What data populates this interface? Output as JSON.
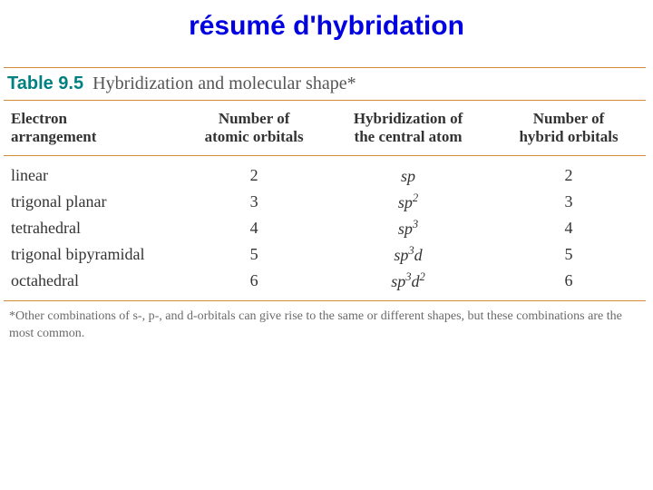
{
  "title": {
    "text": "résumé d'hybridation",
    "color": "#0000e0",
    "fontsize": 30
  },
  "table": {
    "rule_color": "#d38a3a",
    "label": {
      "prefix": "Table 9.5",
      "prefix_color": "#008080",
      "caption": "Hybridization and molecular shape*",
      "caption_color": "#555555",
      "fontsize": 20
    },
    "header_fontsize": 17,
    "body_fontsize": 18,
    "text_color": "#333333",
    "columns": [
      {
        "line1": "Electron",
        "line2": "arrangement",
        "width": "28%"
      },
      {
        "line1": "Number of",
        "line2": "atomic orbitals",
        "width": "22%"
      },
      {
        "line1": "Hybridization of",
        "line2": "the central atom",
        "width": "26%"
      },
      {
        "line1": "Number of",
        "line2": "hybrid orbitals",
        "width": "24%"
      }
    ],
    "rows": [
      {
        "arrangement": "linear",
        "n_atomic": "2",
        "hyb_base": "sp",
        "hyb_sup1": "",
        "hyb_d": "",
        "hyb_sup2": "",
        "n_hybrid": "2"
      },
      {
        "arrangement": "trigonal planar",
        "n_atomic": "3",
        "hyb_base": "sp",
        "hyb_sup1": "2",
        "hyb_d": "",
        "hyb_sup2": "",
        "n_hybrid": "3"
      },
      {
        "arrangement": "tetrahedral",
        "n_atomic": "4",
        "hyb_base": "sp",
        "hyb_sup1": "3",
        "hyb_d": "",
        "hyb_sup2": "",
        "n_hybrid": "4"
      },
      {
        "arrangement": "trigonal bipyramidal",
        "n_atomic": "5",
        "hyb_base": "sp",
        "hyb_sup1": "3",
        "hyb_d": "d",
        "hyb_sup2": "",
        "n_hybrid": "5"
      },
      {
        "arrangement": "octahedral",
        "n_atomic": "6",
        "hyb_base": "sp",
        "hyb_sup1": "3",
        "hyb_d": "d",
        "hyb_sup2": "2",
        "n_hybrid": "6"
      }
    ]
  },
  "footnote": {
    "text": "*Other combinations of s-, p-, and d-orbitals can give rise to the same or different shapes, but these combinations are the most common.",
    "fontsize": 14,
    "color": "#6a6a6a"
  }
}
